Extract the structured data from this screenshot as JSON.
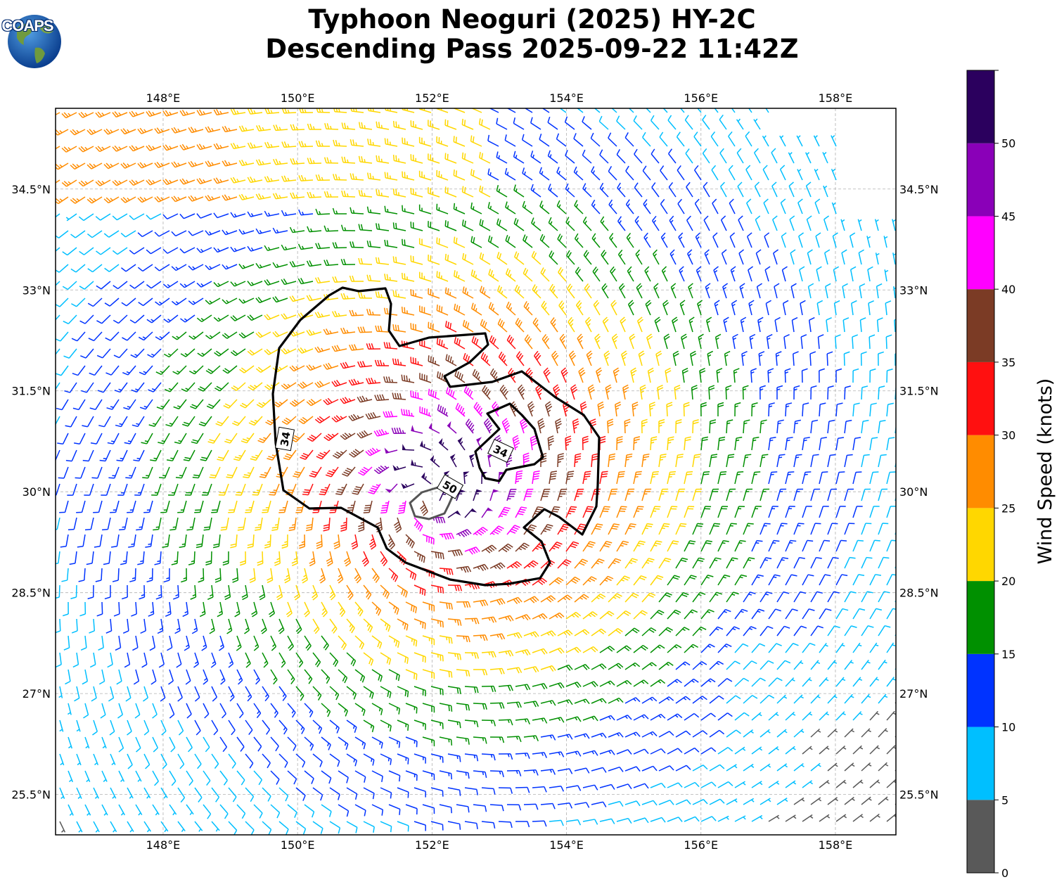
{
  "title": {
    "line1": "Typhoon Neoguri (2025) HY-2C",
    "line2": "Descending Pass 2025-09-22 11:42Z"
  },
  "logo": {
    "text": "COAPS",
    "icon": "globe-icon"
  },
  "map": {
    "lon_range": [
      146.4,
      158.9
    ],
    "lat_range": [
      24.9,
      35.7
    ],
    "lon_ticks": [
      148,
      150,
      152,
      154,
      156,
      158
    ],
    "lat_ticks": [
      25.5,
      27,
      28.5,
      30,
      31.5,
      33,
      34.5
    ],
    "lon_tick_labels": [
      "148°E",
      "150°E",
      "152°E",
      "154°E",
      "156°E",
      "158°E"
    ],
    "lat_tick_labels": [
      "25.5°N",
      "27°N",
      "28.5°N",
      "30°N",
      "31.5°N",
      "33°N",
      "34.5°N"
    ],
    "grid": true,
    "storm_center": {
      "lon": 151.9,
      "lat": 29.9
    }
  },
  "contours": [
    {
      "level": "34",
      "label": "34"
    },
    {
      "level": "34",
      "label": "34"
    },
    {
      "level": "50",
      "label": "50"
    }
  ],
  "colorbar": {
    "label": "Wind Speed (knots)",
    "bounds": [
      0,
      5,
      10,
      15,
      20,
      25,
      30,
      35,
      40,
      45,
      50,
      55
    ],
    "tick_labels": [
      "0",
      "5",
      "10",
      "15",
      "20",
      "25",
      "30",
      "35",
      "40",
      "45",
      "50"
    ],
    "colors": [
      "#595959",
      "#00bfff",
      "#0033ff",
      "#009000",
      "#ffd700",
      "#ff8c00",
      "#ff1010",
      "#7b3b25",
      "#ff00ff",
      "#8a00b8",
      "#2b005e"
    ]
  }
}
